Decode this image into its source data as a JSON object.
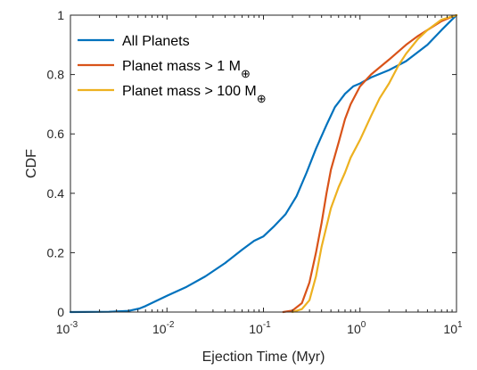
{
  "chart_data": {
    "type": "line",
    "xlabel": "Ejection Time (Myr)",
    "ylabel": "CDF",
    "xscale": "log",
    "xlim": [
      0.001,
      10
    ],
    "ylim": [
      0,
      1
    ],
    "x_ticks": [
      {
        "base": "10",
        "exp": "-3",
        "value": 0.001
      },
      {
        "base": "10",
        "exp": "-2",
        "value": 0.01
      },
      {
        "base": "10",
        "exp": "-1",
        "value": 0.1
      },
      {
        "base": "10",
        "exp": "0",
        "value": 1
      },
      {
        "base": "10",
        "exp": "1",
        "value": 10
      }
    ],
    "y_ticks": [
      {
        "label": "0",
        "value": 0
      },
      {
        "label": "0.2",
        "value": 0.2
      },
      {
        "label": "0.4",
        "value": 0.4
      },
      {
        "label": "0.6",
        "value": 0.6
      },
      {
        "label": "0.8",
        "value": 0.8
      },
      {
        "label": "1",
        "value": 1
      }
    ],
    "grid": false,
    "legend_position": "top-left",
    "series": [
      {
        "name": "All Planets",
        "name_main": "All Planets",
        "name_sub": "",
        "color": "#0072BD",
        "points": [
          [
            0.001,
            0
          ],
          [
            0.0025,
            0.001
          ],
          [
            0.004,
            0.004
          ],
          [
            0.0052,
            0.012
          ],
          [
            0.006,
            0.02
          ],
          [
            0.008,
            0.04
          ],
          [
            0.01,
            0.055
          ],
          [
            0.016,
            0.085
          ],
          [
            0.025,
            0.12
          ],
          [
            0.04,
            0.165
          ],
          [
            0.06,
            0.21
          ],
          [
            0.08,
            0.24
          ],
          [
            0.1,
            0.255
          ],
          [
            0.13,
            0.29
          ],
          [
            0.17,
            0.33
          ],
          [
            0.22,
            0.39
          ],
          [
            0.28,
            0.47
          ],
          [
            0.35,
            0.55
          ],
          [
            0.45,
            0.63
          ],
          [
            0.55,
            0.69
          ],
          [
            0.7,
            0.735
          ],
          [
            0.85,
            0.76
          ],
          [
            1.0,
            0.77
          ],
          [
            1.3,
            0.79
          ],
          [
            2.0,
            0.815
          ],
          [
            3.0,
            0.845
          ],
          [
            5.0,
            0.9
          ],
          [
            7.0,
            0.95
          ],
          [
            10,
            1.0
          ]
        ]
      },
      {
        "name": "Planet mass > 1 M⊕",
        "name_main": "Planet mass > 1 M",
        "name_sub": "⊕",
        "color": "#D95319",
        "points": [
          [
            0.16,
            0
          ],
          [
            0.2,
            0.005
          ],
          [
            0.25,
            0.03
          ],
          [
            0.3,
            0.1
          ],
          [
            0.35,
            0.2
          ],
          [
            0.4,
            0.3
          ],
          [
            0.45,
            0.4
          ],
          [
            0.5,
            0.48
          ],
          [
            0.6,
            0.57
          ],
          [
            0.7,
            0.65
          ],
          [
            0.8,
            0.7
          ],
          [
            1.0,
            0.76
          ],
          [
            1.3,
            0.8
          ],
          [
            2.0,
            0.85
          ],
          [
            3.0,
            0.9
          ],
          [
            4.0,
            0.93
          ],
          [
            5.0,
            0.95
          ],
          [
            7.0,
            0.98
          ],
          [
            9.0,
            0.995
          ],
          [
            10,
            1.0
          ]
        ]
      },
      {
        "name": "Planet mass > 100 M⊕",
        "name_main": "Planet mass > 100 M",
        "name_sub": "⊕",
        "color": "#EDB120",
        "points": [
          [
            0.2,
            0
          ],
          [
            0.25,
            0.01
          ],
          [
            0.3,
            0.04
          ],
          [
            0.35,
            0.12
          ],
          [
            0.4,
            0.22
          ],
          [
            0.5,
            0.35
          ],
          [
            0.6,
            0.42
          ],
          [
            0.7,
            0.47
          ],
          [
            0.8,
            0.52
          ],
          [
            1.0,
            0.58
          ],
          [
            1.3,
            0.66
          ],
          [
            1.6,
            0.72
          ],
          [
            2.0,
            0.77
          ],
          [
            2.5,
            0.83
          ],
          [
            3.0,
            0.87
          ],
          [
            4.0,
            0.92
          ],
          [
            5.0,
            0.95
          ],
          [
            7.0,
            0.985
          ],
          [
            10,
            1.0
          ]
        ]
      }
    ]
  }
}
